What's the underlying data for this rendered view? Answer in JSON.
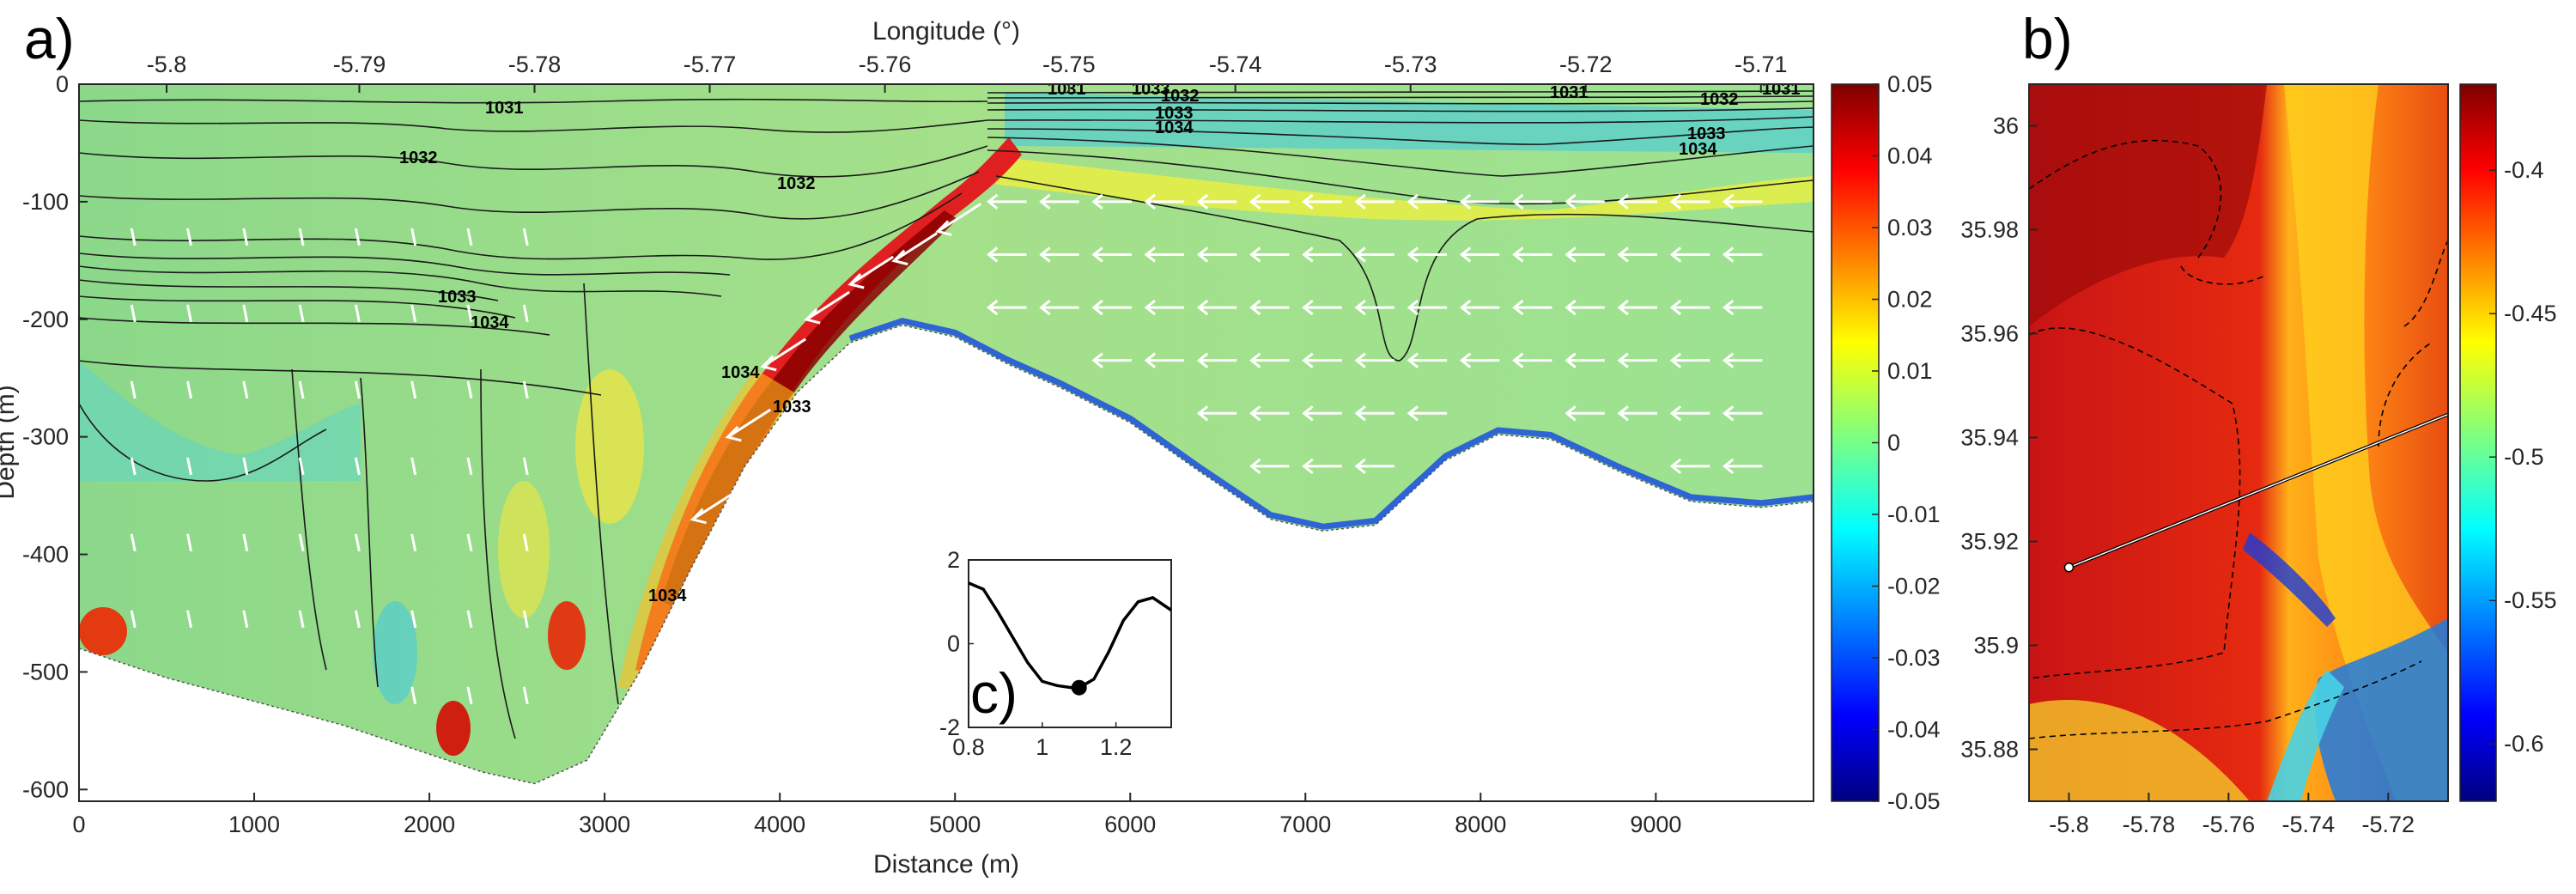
{
  "chart_data": [
    {
      "panel": "a)",
      "type": "heatmap",
      "xlabel": "Distance (m)",
      "ylabel": "Depth (m)",
      "x2label": "Longitude (°)",
      "xlim": [
        0,
        9900
      ],
      "ylim": [
        -610,
        0
      ],
      "xticks": [
        0,
        1000,
        2000,
        3000,
        4000,
        5000,
        6000,
        7000,
        8000,
        9000
      ],
      "yticks": [
        0,
        -100,
        -200,
        -300,
        -400,
        -500,
        -600
      ],
      "x2ticks": [
        -5.8,
        -5.79,
        -5.78,
        -5.77,
        -5.76,
        -5.75,
        -5.74,
        -5.73,
        -5.72,
        -5.71
      ],
      "x2_at_distance": [
        [
          -5.8,
          500
        ],
        [
          -5.79,
          1600
        ],
        [
          -5.78,
          2600
        ],
        [
          -5.77,
          3600
        ],
        [
          -5.76,
          4600
        ],
        [
          -5.75,
          5650
        ],
        [
          -5.74,
          6600
        ],
        [
          -5.73,
          7600
        ],
        [
          -5.72,
          8600
        ],
        [
          -5.71,
          9600
        ]
      ],
      "colorbar": {
        "min": -0.05,
        "max": 0.05,
        "ticks": [
          0.05,
          0.04,
          0.03,
          0.02,
          0.01,
          0,
          -0.01,
          -0.02,
          -0.03,
          -0.04,
          -0.05
        ],
        "colormap": "jet"
      },
      "bathymetry": [
        [
          0,
          -480
        ],
        [
          500,
          -505
        ],
        [
          1000,
          -525
        ],
        [
          1500,
          -545
        ],
        [
          2000,
          -570
        ],
        [
          2300,
          -585
        ],
        [
          2600,
          -595
        ],
        [
          2900,
          -575
        ],
        [
          3200,
          -500
        ],
        [
          3500,
          -410
        ],
        [
          3800,
          -325
        ],
        [
          4100,
          -262
        ],
        [
          4400,
          -220
        ],
        [
          4700,
          -205
        ],
        [
          5000,
          -215
        ],
        [
          5300,
          -238
        ],
        [
          5600,
          -258
        ],
        [
          6000,
          -288
        ],
        [
          6400,
          -330
        ],
        [
          6800,
          -370
        ],
        [
          7100,
          -380
        ],
        [
          7400,
          -375
        ],
        [
          7800,
          -320
        ],
        [
          8100,
          -298
        ],
        [
          8400,
          -302
        ],
        [
          8800,
          -330
        ],
        [
          9200,
          -355
        ],
        [
          9600,
          -360
        ],
        [
          9900,
          -355
        ]
      ],
      "contour_labels": [
        "1031",
        "1032",
        "1033",
        "1034",
        "1032",
        "1033",
        "1034",
        "1034",
        "1031",
        "1032",
        "1033",
        "1034",
        "1031",
        "1032",
        "1033",
        "1034",
        "1031",
        "1033"
      ]
    },
    {
      "panel": "b)",
      "type": "heatmap",
      "xlim": [
        -5.81,
        -5.705
      ],
      "ylim": [
        35.87,
        36.008
      ],
      "xticks": [
        -5.8,
        -5.78,
        -5.76,
        -5.74,
        -5.72
      ],
      "yticks": [
        36,
        35.98,
        35.96,
        35.94,
        35.92,
        35.9,
        35.88
      ],
      "colorbar": {
        "min": -0.62,
        "max": -0.37,
        "ticks": [
          -0.4,
          -0.45,
          -0.5,
          -0.55,
          -0.6
        ],
        "colormap": "jet"
      },
      "section_line": {
        "start": [
          -5.8,
          35.915
        ],
        "end": [
          -5.7,
          35.946
        ]
      }
    },
    {
      "panel": "c)",
      "type": "line",
      "xlim": [
        0.8,
        1.35
      ],
      "ylim": [
        -2,
        2
      ],
      "xticks": [
        0.8,
        1,
        1.2
      ],
      "yticks": [
        2,
        0,
        -2
      ],
      "x": [
        0.8,
        0.84,
        0.88,
        0.92,
        0.96,
        1.0,
        1.04,
        1.08,
        1.1,
        1.14,
        1.18,
        1.22,
        1.26,
        1.3,
        1.35
      ],
      "y": [
        1.45,
        1.3,
        0.75,
        0.15,
        -0.45,
        -0.9,
        -1.0,
        -1.05,
        -1.05,
        -0.85,
        -0.2,
        0.55,
        1.0,
        1.1,
        0.8
      ],
      "marker": [
        1.1,
        -1.05
      ]
    }
  ]
}
